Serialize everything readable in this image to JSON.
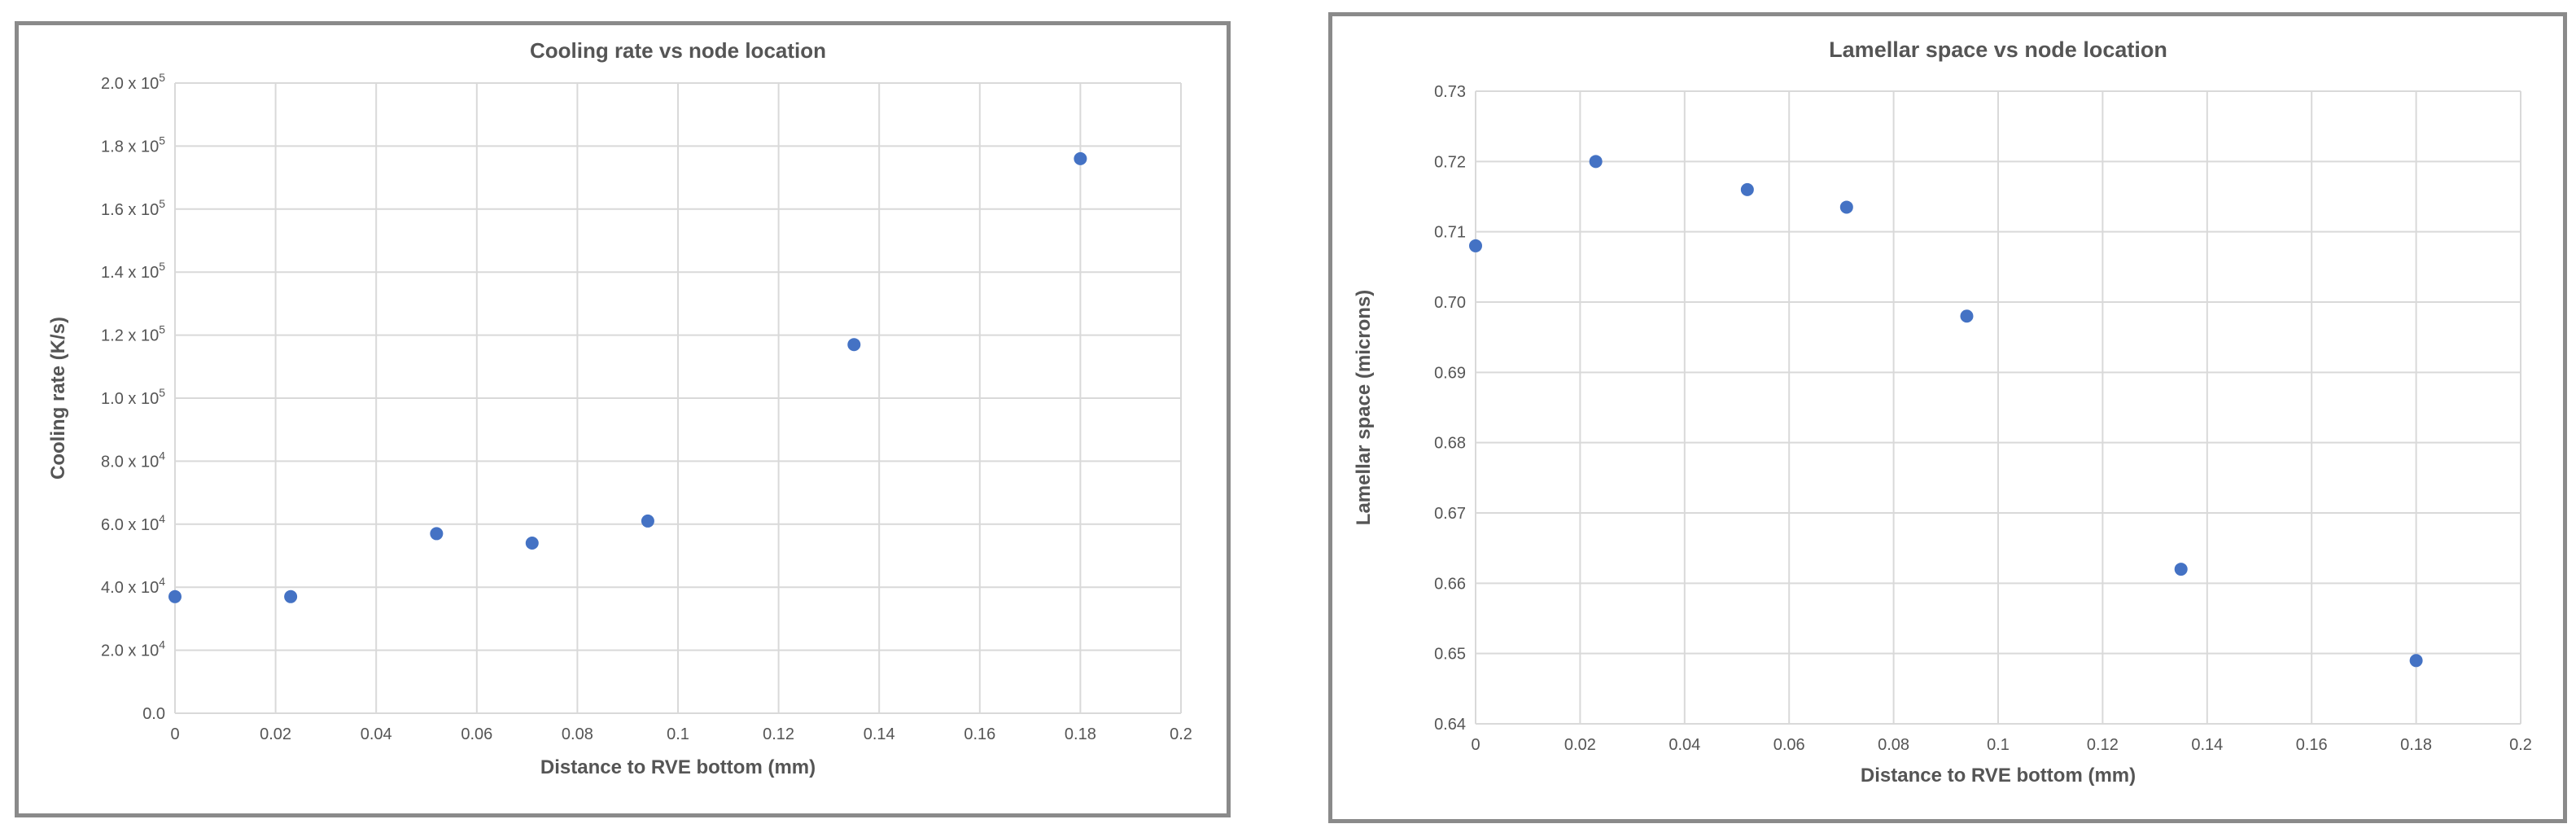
{
  "chart_data": [
    {
      "type": "scatter",
      "title": "Cooling rate vs node location",
      "xlabel": "Distance to RVE bottom (mm)",
      "ylabel": "Cooling rate (K/s)",
      "xlim": [
        0,
        0.2
      ],
      "ylim": [
        0,
        200000
      ],
      "grid": true,
      "color": "#4472C4",
      "x_ticks": [
        "0",
        "0.02",
        "0.04",
        "0.06",
        "0.08",
        "0.1",
        "0.12",
        "0.14",
        "0.16",
        "0.18",
        "0.2"
      ],
      "y_ticks": [
        {
          "mant": "0.0",
          "exp": ""
        },
        {
          "mant": "2.0 x 10",
          "exp": "4"
        },
        {
          "mant": "4.0 x 10",
          "exp": "4"
        },
        {
          "mant": "6.0 x 10",
          "exp": "4"
        },
        {
          "mant": "8.0 x 10",
          "exp": "4"
        },
        {
          "mant": "1.0 x 10",
          "exp": "5"
        },
        {
          "mant": "1.2 x 10",
          "exp": "5"
        },
        {
          "mant": "1.4 x 10",
          "exp": "5"
        },
        {
          "mant": "1.6 x 10",
          "exp": "5"
        },
        {
          "mant": "1.8 x 10",
          "exp": "5"
        },
        {
          "mant": "2.0 x 10",
          "exp": "5"
        }
      ],
      "x": [
        0,
        0.023,
        0.052,
        0.071,
        0.094,
        0.135,
        0.18
      ],
      "y": [
        37000,
        37000,
        57000,
        54000,
        61000,
        117000,
        176000
      ]
    },
    {
      "type": "scatter",
      "title": "Lamellar space vs node location",
      "xlabel": "Distance to RVE bottom (mm)",
      "ylabel": "Lamellar space (microns)",
      "xlim": [
        0,
        0.2
      ],
      "ylim": [
        0.64,
        0.73
      ],
      "grid": true,
      "color": "#4472C4",
      "x_ticks": [
        "0",
        "0.02",
        "0.04",
        "0.06",
        "0.08",
        "0.1",
        "0.12",
        "0.14",
        "0.16",
        "0.18",
        "0.2"
      ],
      "y_ticks": [
        "0.64",
        "0.65",
        "0.66",
        "0.67",
        "0.68",
        "0.69",
        "0.70",
        "0.71",
        "0.72",
        "0.73"
      ],
      "x": [
        0,
        0.023,
        0.052,
        0.071,
        0.094,
        0.135,
        0.18
      ],
      "y": [
        0.708,
        0.72,
        0.716,
        0.7135,
        0.698,
        0.662,
        0.649
      ]
    }
  ]
}
